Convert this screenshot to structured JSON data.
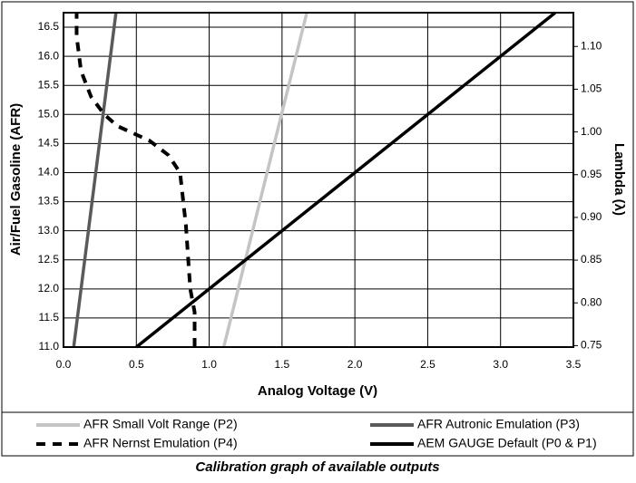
{
  "chart_data": {
    "type": "line",
    "caption": "Calibration graph of available outputs",
    "xlabel": "Analog Voltage (V)",
    "ylabel": "Air/Fuel Gasoline (AFR)",
    "y2label": "Lambda (λ)",
    "xlim": [
      0,
      3.5
    ],
    "xticks": [
      {
        "value": 0,
        "label": "0.0"
      },
      0.5,
      {
        "value": 1,
        "label": "1.0"
      },
      1.5,
      {
        "value": 2,
        "label": "2.0"
      },
      2.5,
      {
        "value": 3,
        "label": "3.0"
      },
      3.5
    ],
    "ylim": [
      11,
      16.75
    ],
    "yticks": [
      {
        "value": 11,
        "label": "11.0"
      },
      11.5,
      {
        "value": 12,
        "label": "12.0"
      },
      12.5,
      {
        "value": 13,
        "label": "13.0"
      },
      13.5,
      {
        "value": 14,
        "label": "14.0"
      },
      14.5,
      {
        "value": 15,
        "label": "15.0"
      },
      15.5,
      {
        "value": 16,
        "label": "16.0"
      },
      16.5
    ],
    "y2lim": [
      0.7483,
      1.1395
    ],
    "y2ticks": [
      0.75,
      {
        "value": 0.8,
        "label": "0.80"
      },
      0.85,
      {
        "value": 0.9,
        "label": "0.90"
      },
      0.95,
      {
        "value": 1,
        "label": "1.00"
      },
      1.05,
      {
        "value": 1.1,
        "label": "1.10"
      }
    ],
    "grid": true,
    "legend": "bottom",
    "series": [
      {
        "name": "AFR Small Volt Range (P2)",
        "color": "#c4c4c4",
        "style": "solid",
        "x": [
          1.1,
          1.67
        ],
        "values": [
          11,
          16.75
        ]
      },
      {
        "name": "AFR Autronic Emulation (P3)",
        "color": "#5a5a5a",
        "style": "solid",
        "x": [
          0.07,
          0.36
        ],
        "values": [
          11,
          16.75
        ]
      },
      {
        "name": "AFR Nernst Emulation (P4)",
        "color": "#000000",
        "style": "dashed",
        "x": [
          0.9,
          0.9,
          0.87,
          0.84,
          0.8,
          0.72,
          0.59,
          0.37,
          0.28,
          0.19,
          0.12,
          0.09,
          0.09
        ],
        "values": [
          11,
          11.6,
          12,
          13.1,
          14,
          14.3,
          14.55,
          14.8,
          15,
          15.3,
          15.75,
          16.35,
          16.75
        ]
      },
      {
        "name": "AEM GAUGE Default (P0 & P1)",
        "color": "#000000",
        "style": "solid",
        "x": [
          0.5,
          3.375
        ],
        "values": [
          11,
          16.75
        ]
      }
    ]
  }
}
